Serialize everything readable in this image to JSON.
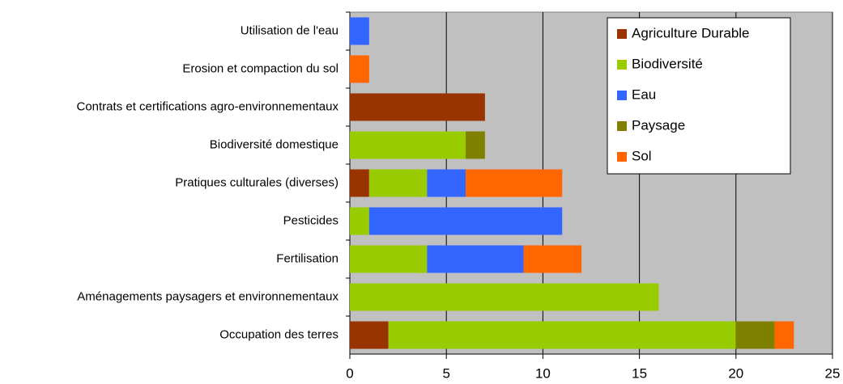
{
  "chart_data": {
    "type": "stacked_bar_horizontal",
    "categories": [
      "Utilisation de l'eau",
      "Erosion et compaction du sol",
      "Contrats et certifications agro-environnementaux",
      "Biodiversité domestique",
      "Pratiques culturales (diverses)",
      "Pesticides",
      "Fertilisation",
      "Aménagements paysagers et environnementaux",
      "Occupation des terres"
    ],
    "series": [
      {
        "name": "Agriculture Durable",
        "color": "#993300",
        "values": [
          0,
          0,
          7,
          0,
          1,
          0,
          0,
          0,
          2
        ]
      },
      {
        "name": "Biodiversité",
        "color": "#99cc00",
        "values": [
          0,
          0,
          0,
          6,
          3,
          1,
          4,
          16,
          18
        ]
      },
      {
        "name": "Eau",
        "color": "#3366ff",
        "values": [
          1,
          0,
          0,
          0,
          2,
          10,
          5,
          0,
          0
        ]
      },
      {
        "name": "Paysage",
        "color": "#808000",
        "values": [
          0,
          0,
          0,
          1,
          0,
          0,
          0,
          0,
          2
        ]
      },
      {
        "name": "Sol",
        "color": "#ff6600",
        "values": [
          0,
          1,
          0,
          0,
          5,
          0,
          3,
          0,
          1
        ]
      }
    ],
    "xlim": [
      0,
      25
    ],
    "xticks": [
      0,
      5,
      10,
      15,
      20,
      25
    ],
    "grid": true,
    "legend": "upper right"
  }
}
